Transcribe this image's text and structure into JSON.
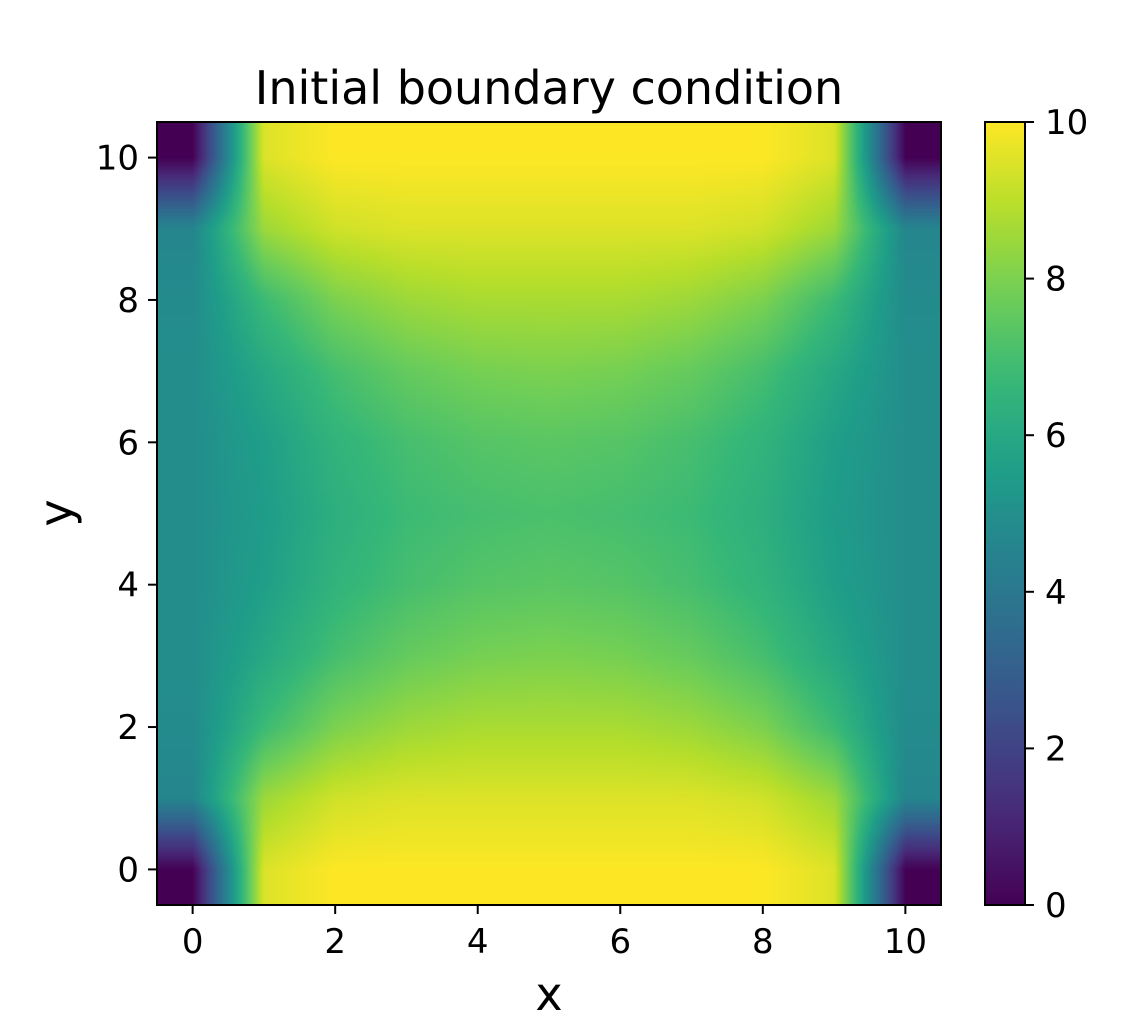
{
  "chart_data": {
    "type": "heatmap",
    "title": "Initial boundary condition",
    "xlabel": "x",
    "ylabel": "y",
    "xlim": [
      -0.5,
      10.5
    ],
    "ylim": [
      -0.5,
      10.5
    ],
    "x_ticks": [
      0,
      2,
      4,
      6,
      8,
      10
    ],
    "y_ticks": [
      0,
      2,
      4,
      6,
      8,
      10
    ],
    "x_tick_labels": [
      "0",
      "2",
      "4",
      "6",
      "8",
      "10"
    ],
    "y_tick_labels": [
      "0",
      "2",
      "4",
      "6",
      "8",
      "10"
    ],
    "colormap": "viridis",
    "color_range": [
      0,
      10
    ],
    "colorbar_ticks": [
      0,
      2,
      4,
      6,
      8,
      10
    ],
    "colorbar_tick_labels": [
      "0",
      "2",
      "4",
      "6",
      "8",
      "10"
    ],
    "grid": false,
    "x": [
      0,
      1,
      2,
      3,
      4,
      5,
      6,
      7,
      8,
      9,
      10
    ],
    "y": [
      0,
      1,
      2,
      3,
      4,
      5,
      6,
      7,
      8,
      9,
      10
    ],
    "z": [
      [
        0.0,
        9.5,
        10.0,
        10.0,
        10.0,
        10.0,
        10.0,
        10.0,
        10.0,
        9.5,
        0.0
      ],
      [
        4.6,
        8.5,
        9.3,
        9.5,
        9.5,
        9.5,
        9.5,
        9.5,
        9.3,
        8.5,
        4.6
      ],
      [
        4.8,
        6.8,
        8.0,
        8.5,
        8.7,
        8.7,
        8.7,
        8.5,
        8.0,
        6.8,
        4.8
      ],
      [
        4.9,
        6.0,
        7.0,
        7.6,
        7.9,
        8.0,
        7.9,
        7.6,
        7.0,
        6.0,
        4.9
      ],
      [
        4.9,
        5.6,
        6.5,
        7.0,
        7.3,
        7.4,
        7.3,
        7.0,
        6.5,
        5.6,
        4.9
      ],
      [
        4.9,
        5.5,
        6.3,
        6.8,
        7.0,
        7.1,
        7.0,
        6.8,
        6.3,
        5.5,
        4.9
      ],
      [
        4.9,
        5.6,
        6.5,
        7.0,
        7.3,
        7.4,
        7.3,
        7.0,
        6.5,
        5.6,
        4.9
      ],
      [
        4.9,
        6.0,
        7.0,
        7.6,
        7.9,
        8.0,
        7.9,
        7.6,
        7.0,
        6.0,
        4.9
      ],
      [
        4.8,
        6.8,
        8.0,
        8.5,
        8.7,
        8.7,
        8.7,
        8.5,
        8.0,
        6.8,
        4.8
      ],
      [
        4.6,
        8.5,
        9.3,
        9.5,
        9.5,
        9.5,
        9.5,
        9.5,
        9.3,
        8.5,
        4.6
      ],
      [
        0.0,
        9.5,
        10.0,
        10.0,
        10.0,
        10.0,
        10.0,
        10.0,
        10.0,
        9.5,
        0.0
      ]
    ]
  }
}
